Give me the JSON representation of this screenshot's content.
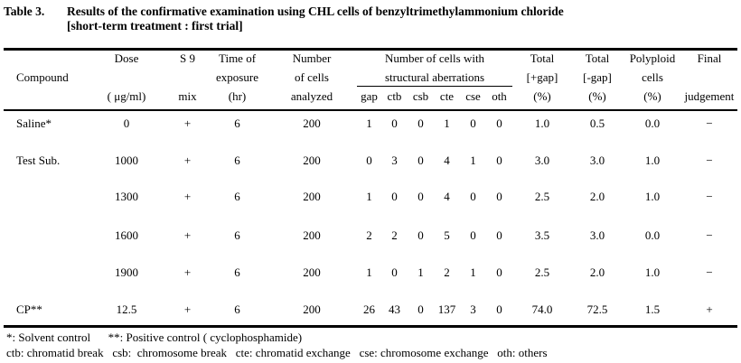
{
  "title": {
    "label": "Table 3.",
    "line1": "Results of the confirmative examination using CHL cells of benzyltrimethylammonium chloride",
    "line2": "[short-term treatment : first trial]"
  },
  "header": {
    "compound": "Compound",
    "dose": {
      "l1": "Dose",
      "l3": "( μg/ml)"
    },
    "s9": {
      "l1": "S 9",
      "l3": "mix"
    },
    "time": {
      "l1": "Time of",
      "l2": "exposure",
      "l3": "(hr)"
    },
    "cells": {
      "l1": "Number",
      "l2": "of cells",
      "l3": "analyzed"
    },
    "aberrations": {
      "l1": "Number of cells with",
      "l2": "structural aberrations",
      "sub": [
        "gap",
        "ctb",
        "csb",
        "cte",
        "cse",
        "oth"
      ]
    },
    "total_plus": {
      "l1": "Total",
      "l2": "[+gap]",
      "l3": "(%)"
    },
    "total_minus": {
      "l1": "Total",
      "l2": "[-gap]",
      "l3": "(%)"
    },
    "polyploid": {
      "l1": "Polyploid",
      "l2": "cells",
      "l3": "(%)"
    },
    "final": {
      "l1": "Final",
      "l3": "judgement"
    }
  },
  "rows": [
    {
      "compound": "Saline*",
      "dose": "0",
      "s9": "+",
      "time": "6",
      "cells": "200",
      "gap": "1",
      "ctb": "0",
      "csb": "0",
      "cte": "1",
      "cse": "0",
      "oth": "0",
      "total_plus": "1.0",
      "total_minus": "0.5",
      "polyploid": "0.0",
      "judgement": "−"
    },
    {
      "compound": "Test Sub.",
      "dose": "1000",
      "s9": "+",
      "time": "6",
      "cells": "200",
      "gap": "0",
      "ctb": "3",
      "csb": "0",
      "cte": "4",
      "cse": "1",
      "oth": "0",
      "total_plus": "3.0",
      "total_minus": "3.0",
      "polyploid": "1.0",
      "judgement": "−"
    },
    {
      "compound": "",
      "dose": "1300",
      "s9": "+",
      "time": "6",
      "cells": "200",
      "gap": "1",
      "ctb": "0",
      "csb": "0",
      "cte": "4",
      "cse": "0",
      "oth": "0",
      "total_plus": "2.5",
      "total_minus": "2.0",
      "polyploid": "1.0",
      "judgement": "−"
    },
    {
      "compound": "",
      "dose": "1600",
      "s9": "+",
      "time": "6",
      "cells": "200",
      "gap": "2",
      "ctb": "2",
      "csb": "0",
      "cte": "5",
      "cse": "0",
      "oth": "0",
      "total_plus": "3.5",
      "total_minus": "3.0",
      "polyploid": "0.0",
      "judgement": "−"
    },
    {
      "compound": "",
      "dose": "1900",
      "s9": "+",
      "time": "6",
      "cells": "200",
      "gap": "1",
      "ctb": "0",
      "csb": "1",
      "cte": "2",
      "cse": "1",
      "oth": "0",
      "total_plus": "2.5",
      "total_minus": "2.0",
      "polyploid": "1.0",
      "judgement": "−"
    },
    {
      "compound": "CP**",
      "dose": "12.5",
      "s9": "+",
      "time": "6",
      "cells": "200",
      "gap": "26",
      "ctb": "43",
      "csb": "0",
      "cte": "137",
      "cse": "3",
      "oth": "0",
      "total_plus": "74.0",
      "total_minus": "72.5",
      "polyploid": "1.5",
      "judgement": "+"
    }
  ],
  "footnotes": {
    "line1": "*: Solvent control      **: Positive control ( cyclophosphamide)",
    "line2": "ctb: chromatid break   csb:  chromosome break   cte: chromatid exchange   cse: chromosome exchange   oth: others"
  }
}
